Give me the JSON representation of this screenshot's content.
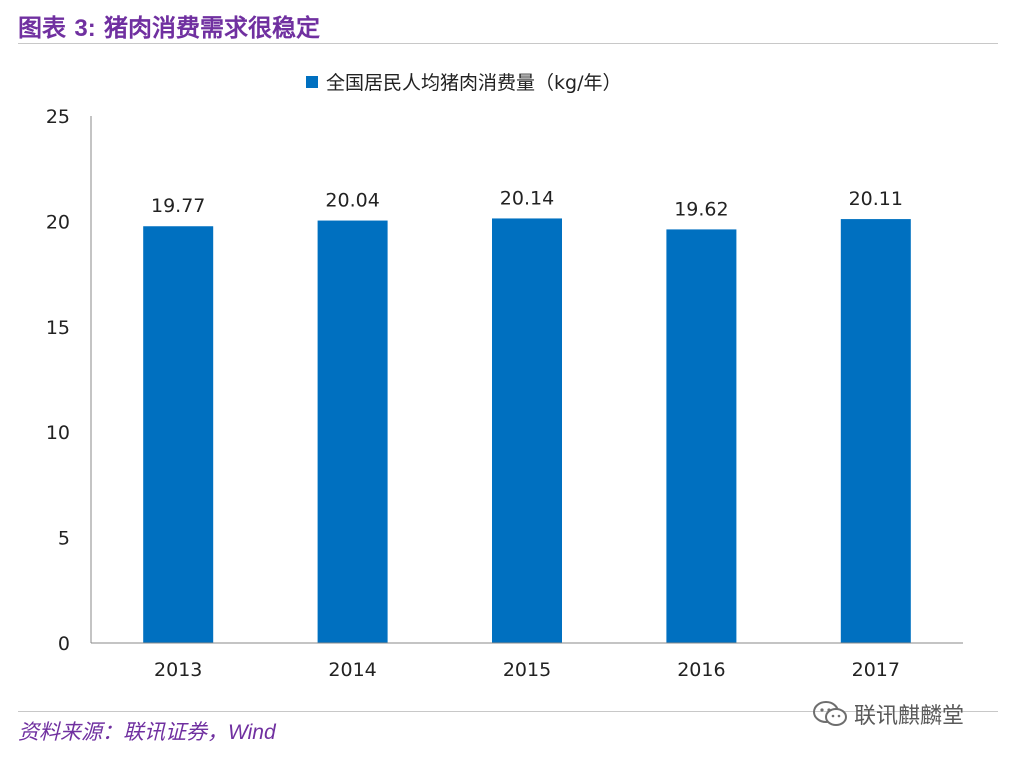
{
  "header": {
    "title_prefix": "图表 ",
    "title_number": "3:",
    "title_text": " 猪肉消费需求很稳定"
  },
  "footer": {
    "source_prefix": "资料来源：联讯证券，",
    "source_en": "Wind",
    "wechat_name": "联讯麒麟堂"
  },
  "colors": {
    "bar": "#0070c0",
    "title": "#7030a0",
    "axis": "#888888"
  },
  "chart_data": {
    "type": "bar",
    "categories": [
      "2013",
      "2014",
      "2015",
      "2016",
      "2017"
    ],
    "series": [
      {
        "name": "全国居民人均猪肉消费量（kg/年）",
        "values": [
          19.77,
          20.04,
          20.14,
          19.62,
          20.11
        ]
      }
    ],
    "data_labels": [
      "19.77",
      "20.04",
      "20.14",
      "19.62",
      "20.11"
    ],
    "yticks": [
      "0",
      "5",
      "10",
      "15",
      "20",
      "25"
    ],
    "ylim": [
      0,
      25
    ],
    "legend_position": "top-center",
    "grid": false
  }
}
